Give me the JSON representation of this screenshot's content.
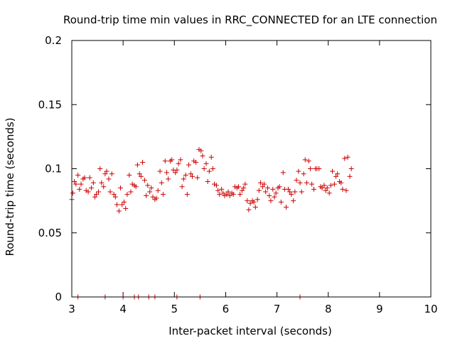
{
  "chart_data": {
    "type": "scatter",
    "title": "Round-trip time min values in RRC_CONNECTED for an LTE connection",
    "xlabel": "Inter-packet interval (seconds)",
    "ylabel": "Round-trip time (seconds)",
    "xlim": [
      3,
      10
    ],
    "ylim": [
      0,
      0.2
    ],
    "xticks": [
      3,
      4,
      5,
      6,
      7,
      8,
      9,
      10
    ],
    "xtick_labels": [
      "3",
      "4",
      "5",
      "6",
      "7",
      "8",
      "9",
      "10"
    ],
    "yticks": [
      0,
      0.05,
      0.1,
      0.15,
      0.2
    ],
    "ytick_labels": [
      "0",
      "0.05",
      "0.1",
      "0.15",
      "0.2"
    ],
    "grid": false,
    "marker_color": "#cc0000",
    "series": [
      {
        "marker": "plus",
        "points": [
          [
            3.0,
            0.076
          ],
          [
            3.02,
            0.081
          ],
          [
            3.05,
            0.09
          ],
          [
            3.08,
            0.088
          ],
          [
            3.12,
            0.095
          ],
          [
            3.15,
            0.084
          ],
          [
            3.18,
            0.088
          ],
          [
            3.22,
            0.092
          ],
          [
            3.25,
            0.093
          ],
          [
            3.28,
            0.083
          ],
          [
            3.32,
            0.082
          ],
          [
            3.35,
            0.093
          ],
          [
            3.38,
            0.085
          ],
          [
            3.42,
            0.089
          ],
          [
            3.45,
            0.078
          ],
          [
            3.48,
            0.08
          ],
          [
            3.52,
            0.082
          ],
          [
            3.55,
            0.1
          ],
          [
            3.58,
            0.089
          ],
          [
            3.62,
            0.086
          ],
          [
            3.65,
            0.096
          ],
          [
            3.68,
            0.098
          ],
          [
            3.72,
            0.092
          ],
          [
            3.75,
            0.082
          ],
          [
            3.78,
            0.096
          ],
          [
            3.82,
            0.08
          ],
          [
            3.85,
            0.078
          ],
          [
            3.88,
            0.072
          ],
          [
            3.92,
            0.067
          ],
          [
            3.95,
            0.085
          ],
          [
            3.98,
            0.072
          ],
          [
            4.02,
            0.074
          ],
          [
            4.05,
            0.069
          ],
          [
            4.08,
            0.08
          ],
          [
            4.12,
            0.095
          ],
          [
            4.15,
            0.082
          ],
          [
            4.18,
            0.088
          ],
          [
            4.22,
            0.087
          ],
          [
            4.25,
            0.086
          ],
          [
            4.28,
            0.103
          ],
          [
            4.32,
            0.096
          ],
          [
            4.35,
            0.094
          ],
          [
            4.38,
            0.105
          ],
          [
            4.42,
            0.091
          ],
          [
            4.45,
            0.079
          ],
          [
            4.48,
            0.087
          ],
          [
            4.52,
            0.082
          ],
          [
            4.55,
            0.085
          ],
          [
            4.58,
            0.078
          ],
          [
            4.62,
            0.076
          ],
          [
            4.65,
            0.077
          ],
          [
            4.68,
            0.083
          ],
          [
            4.72,
            0.098
          ],
          [
            4.75,
            0.089
          ],
          [
            4.78,
            0.08
          ],
          [
            4.82,
            0.106
          ],
          [
            4.85,
            0.097
          ],
          [
            4.88,
            0.092
          ],
          [
            4.92,
            0.106
          ],
          [
            4.95,
            0.107
          ],
          [
            4.98,
            0.099
          ],
          [
            5.02,
            0.097
          ],
          [
            5.05,
            0.099
          ],
          [
            5.08,
            0.104
          ],
          [
            5.12,
            0.107
          ],
          [
            5.15,
            0.086
          ],
          [
            5.18,
            0.092
          ],
          [
            5.22,
            0.095
          ],
          [
            5.25,
            0.08
          ],
          [
            5.28,
            0.103
          ],
          [
            5.32,
            0.096
          ],
          [
            5.35,
            0.094
          ],
          [
            5.38,
            0.106
          ],
          [
            5.42,
            0.105
          ],
          [
            5.45,
            0.093
          ],
          [
            5.48,
            0.115
          ],
          [
            5.52,
            0.114
          ],
          [
            5.55,
            0.11
          ],
          [
            5.58,
            0.1
          ],
          [
            5.62,
            0.104
          ],
          [
            5.65,
            0.09
          ],
          [
            5.68,
            0.098
          ],
          [
            5.72,
            0.109
          ],
          [
            5.75,
            0.1
          ],
          [
            5.78,
            0.088
          ],
          [
            5.82,
            0.087
          ],
          [
            5.85,
            0.083
          ],
          [
            5.88,
            0.08
          ],
          [
            5.92,
            0.084
          ],
          [
            5.95,
            0.081
          ],
          [
            5.98,
            0.079
          ],
          [
            6.02,
            0.08
          ],
          [
            6.05,
            0.082
          ],
          [
            6.08,
            0.079
          ],
          [
            6.12,
            0.081
          ],
          [
            6.15,
            0.08
          ],
          [
            6.18,
            0.086
          ],
          [
            6.22,
            0.085
          ],
          [
            6.25,
            0.086
          ],
          [
            6.28,
            0.08
          ],
          [
            6.32,
            0.083
          ],
          [
            6.35,
            0.085
          ],
          [
            6.38,
            0.088
          ],
          [
            6.42,
            0.075
          ],
          [
            6.45,
            0.068
          ],
          [
            6.48,
            0.073
          ],
          [
            6.52,
            0.075
          ],
          [
            6.55,
            0.074
          ],
          [
            6.58,
            0.07
          ],
          [
            6.62,
            0.076
          ],
          [
            6.65,
            0.083
          ],
          [
            6.68,
            0.089
          ],
          [
            6.72,
            0.086
          ],
          [
            6.75,
            0.088
          ],
          [
            6.78,
            0.082
          ],
          [
            6.82,
            0.085
          ],
          [
            6.85,
            0.079
          ],
          [
            6.88,
            0.075
          ],
          [
            6.92,
            0.084
          ],
          [
            6.95,
            0.078
          ],
          [
            6.98,
            0.081
          ],
          [
            7.02,
            0.085
          ],
          [
            7.05,
            0.086
          ],
          [
            7.08,
            0.074
          ],
          [
            7.12,
            0.097
          ],
          [
            7.15,
            0.084
          ],
          [
            7.18,
            0.07
          ],
          [
            7.22,
            0.084
          ],
          [
            7.25,
            0.082
          ],
          [
            7.28,
            0.08
          ],
          [
            7.32,
            0.075
          ],
          [
            7.35,
            0.082
          ],
          [
            7.38,
            0.091
          ],
          [
            7.42,
            0.098
          ],
          [
            7.45,
            0.089
          ],
          [
            7.48,
            0.082
          ],
          [
            7.52,
            0.096
          ],
          [
            7.55,
            0.107
          ],
          [
            7.58,
            0.089
          ],
          [
            7.62,
            0.106
          ],
          [
            7.65,
            0.1
          ],
          [
            7.68,
            0.088
          ],
          [
            7.72,
            0.084
          ],
          [
            7.75,
            0.1
          ],
          [
            7.78,
            0.1
          ],
          [
            7.82,
            0.1
          ],
          [
            7.85,
            0.086
          ],
          [
            7.88,
            0.085
          ],
          [
            7.92,
            0.087
          ],
          [
            7.95,
            0.083
          ],
          [
            7.98,
            0.085
          ],
          [
            8.02,
            0.081
          ],
          [
            8.05,
            0.087
          ],
          [
            8.08,
            0.098
          ],
          [
            8.12,
            0.088
          ],
          [
            8.15,
            0.094
          ],
          [
            8.18,
            0.096
          ],
          [
            8.22,
            0.09
          ],
          [
            8.25,
            0.089
          ],
          [
            8.28,
            0.084
          ],
          [
            8.32,
            0.108
          ],
          [
            8.35,
            0.083
          ],
          [
            8.38,
            0.109
          ],
          [
            8.42,
            0.094
          ],
          [
            8.45,
            0.1
          ],
          [
            3.12,
            0.0
          ],
          [
            3.65,
            0.0
          ],
          [
            4.0,
            0.0
          ],
          [
            4.22,
            0.0
          ],
          [
            4.3,
            0.0
          ],
          [
            4.5,
            0.0
          ],
          [
            4.62,
            0.0
          ],
          [
            5.05,
            0.0
          ],
          [
            5.5,
            0.0
          ],
          [
            7.45,
            0.0
          ]
        ]
      }
    ]
  }
}
